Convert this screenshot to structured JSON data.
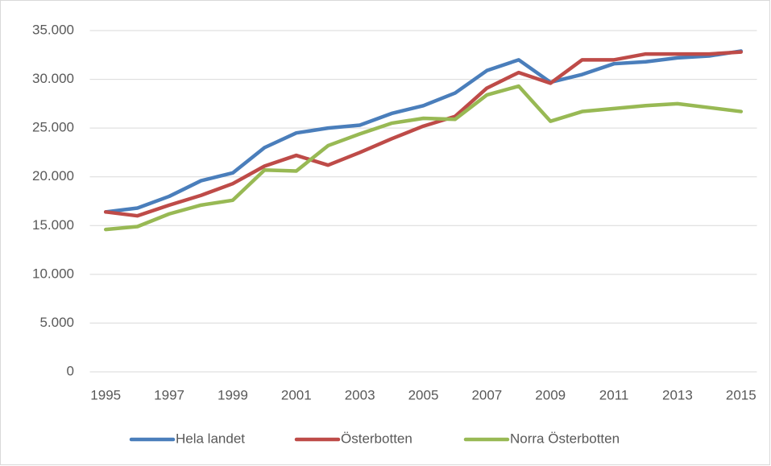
{
  "chart_data": {
    "type": "line",
    "x": [
      1995,
      1996,
      1997,
      1998,
      1999,
      2000,
      2001,
      2002,
      2003,
      2004,
      2005,
      2006,
      2007,
      2008,
      2009,
      2010,
      2011,
      2012,
      2013,
      2014,
      2015
    ],
    "xlim": [
      1995,
      2015
    ],
    "xticks": [
      1995,
      1997,
      1999,
      2001,
      2003,
      2005,
      2007,
      2009,
      2011,
      2013,
      2015
    ],
    "ylim": [
      0,
      35000
    ],
    "yticks": [
      0,
      {
        "value": 5000,
        "label": "5.000"
      },
      {
        "value": 10000,
        "label": "10.000"
      },
      {
        "value": 15000,
        "label": "15.000"
      },
      {
        "value": 20000,
        "label": "20.000"
      },
      {
        "value": 25000,
        "label": "25.000"
      },
      {
        "value": 30000,
        "label": "30.000"
      },
      {
        "value": 35000,
        "label": "35.000"
      }
    ],
    "grid": true,
    "legend": "bottom",
    "series": [
      {
        "name": "Hela landet",
        "color": "#4a7ebb",
        "values": [
          16400,
          16800,
          18000,
          19600,
          20400,
          23000,
          24500,
          25000,
          25300,
          26500,
          27300,
          28600,
          30900,
          32000,
          29700,
          30500,
          31600,
          31800,
          32200,
          32400,
          32900
        ]
      },
      {
        "name": "Österbotten",
        "color": "#be4b48",
        "values": [
          16400,
          16000,
          17100,
          18100,
          19300,
          21100,
          22200,
          21200,
          22500,
          23900,
          25200,
          26200,
          29100,
          30700,
          29600,
          32000,
          32000,
          32600,
          32600,
          32600,
          32800
        ]
      },
      {
        "name": "Norra Österbotten",
        "color": "#98b954",
        "values": [
          14600,
          14900,
          16200,
          17100,
          17600,
          20700,
          20600,
          23200,
          24400,
          25500,
          26000,
          25900,
          28400,
          29300,
          25700,
          26700,
          27000,
          27300,
          27500,
          27100,
          26700
        ]
      }
    ]
  }
}
